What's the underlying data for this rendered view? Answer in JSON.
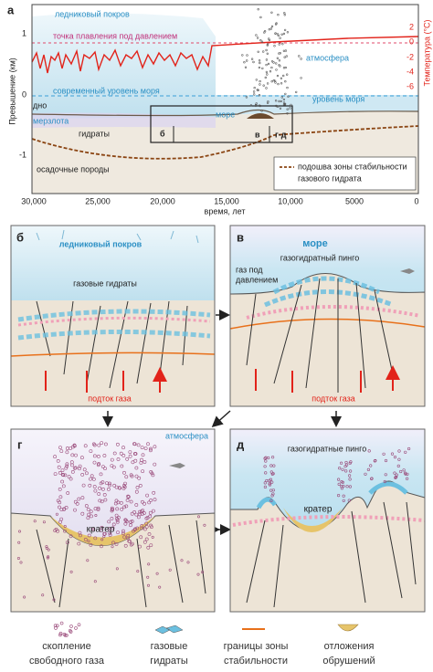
{
  "panel_a": {
    "label": "а",
    "y_axis_title": "Превышение (км)",
    "y_ticks": [
      "1",
      "0",
      "-1"
    ],
    "y2_axis_title": "Температура (°C)",
    "y2_ticks": [
      "2",
      "0",
      "-2",
      "-4",
      "-6"
    ],
    "x_ticks": [
      "30,000",
      "25,000",
      "20,000",
      "15,000",
      "10,000",
      "5000",
      "0"
    ],
    "x_axis_title": "время, лет",
    "ice": "ледниковый покров",
    "melting_point": "точка плавления под давлением",
    "atmosphere": "атмосфера",
    "modern_sea_level": "современный уровень моря",
    "sea_level": "уровень моря",
    "bottom": "дно",
    "permafrost": "мерзлота",
    "sea": "море",
    "hydrates": "гидраты",
    "box_b": "б",
    "box_v": "в",
    "box_gd": "г-д",
    "sediments": "осадочные породы",
    "legend": [
      "подошва зоны стабильности",
      "газового гидрата"
    ]
  },
  "panel_b": {
    "label": "б",
    "ice": "ледниковый покров",
    "hydrates": "газовые гидраты",
    "gas_flow": "подток газа"
  },
  "panel_v": {
    "label": "в",
    "sea": "море",
    "pingo": "газогидратный пинго",
    "pressured_gas": [
      "газ под",
      "давлением"
    ],
    "gas_flow": "подток газа"
  },
  "panel_g": {
    "label": "г",
    "atmosphere": "атмосфера",
    "crater": "кратер"
  },
  "panel_d": {
    "label": "д",
    "pingos": "газогидратные пинго",
    "crater": "кратер"
  },
  "legend": [
    {
      "label": [
        "скопление",
        "свободного газа"
      ]
    },
    {
      "label": [
        "газовые",
        "гидраты"
      ]
    },
    {
      "label": [
        "границы зоны",
        "стабильности"
      ]
    },
    {
      "label": [
        "отложения",
        "обрушений"
      ]
    }
  ]
}
